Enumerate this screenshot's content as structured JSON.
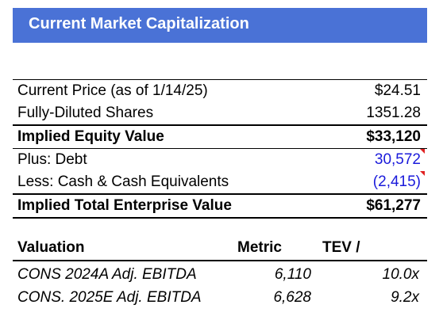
{
  "header": {
    "title": "Current Market Capitalization"
  },
  "cap_rows": [
    {
      "label": "Current Price (as of 1/14/25)",
      "value": "$24.51"
    },
    {
      "label": "Fully-Diluted Shares",
      "value": "1351.28"
    },
    {
      "label": "Implied Equity Value",
      "value": "$33,120"
    },
    {
      "label": "Plus: Debt",
      "value": "30,572"
    },
    {
      "label": "Less: Cash & Cash Equivalents",
      "value": "(2,415)"
    },
    {
      "label": "Implied Total Enterprise Value",
      "value": "$61,277"
    }
  ],
  "valuation": {
    "headers": {
      "name": "Valuation",
      "metric": "Metric",
      "tev": "TEV /"
    },
    "rows": [
      {
        "name": "CONS 2024A Adj. EBITDA",
        "metric": "6,110",
        "multiple": "10.0x"
      },
      {
        "name": "CONS. 2025E Adj. EBITDA",
        "metric": "6,628",
        "multiple": "9.2x"
      }
    ]
  },
  "colors": {
    "header_bg": "#4a72d6",
    "input_blue": "#1a1adb",
    "comment_flag": "#e02020"
  }
}
